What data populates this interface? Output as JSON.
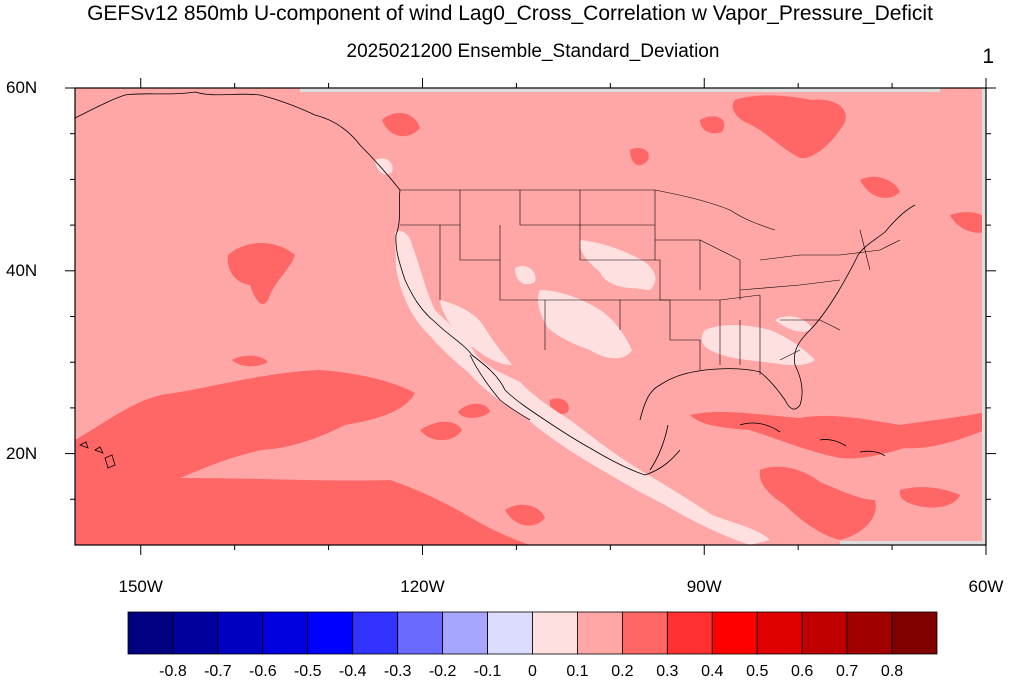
{
  "title": "GEFSv12 850mb U-component of wind Lag0_Cross_Correlation w Vapor_Pressure_Deficit",
  "subtitle": "2025021200 Ensemble_Standard_Deviation",
  "panel_number": "1",
  "axes": {
    "lat_ticks": [
      {
        "value": 60,
        "label": "60N"
      },
      {
        "value": 40,
        "label": "40N"
      },
      {
        "value": 20,
        "label": "20N"
      }
    ],
    "lon_ticks": [
      {
        "value": -150,
        "label": "150W"
      },
      {
        "value": -120,
        "label": "120W"
      },
      {
        "value": -90,
        "label": "90W"
      },
      {
        "value": -60,
        "label": "60W"
      }
    ],
    "lon_range": [
      -157,
      -60
    ],
    "lat_range": [
      10,
      60
    ]
  },
  "colorbar": {
    "colors": [
      "#000080",
      "#00009f",
      "#0000c0",
      "#0000e0",
      "#0000ff",
      "#3333ff",
      "#6a6aff",
      "#a6a6ff",
      "#dcdcff",
      "#ffe0e0",
      "#ffa6a6",
      "#ff6666",
      "#ff3030",
      "#ff0000",
      "#e00000",
      "#c00000",
      "#a00000",
      "#800000"
    ],
    "labels": [
      "-0.8",
      "-0.7",
      "-0.6",
      "-0.5",
      "-0.4",
      "-0.3",
      "-0.2",
      "-0.1",
      "0",
      "0.1",
      "0.2",
      "0.3",
      "0.4",
      "0.5",
      "0.6",
      "0.7",
      "0.8"
    ]
  },
  "field_colors": {
    "background": "#ffa6a6",
    "low": "#ffe0e0",
    "high": "#ff6666"
  }
}
